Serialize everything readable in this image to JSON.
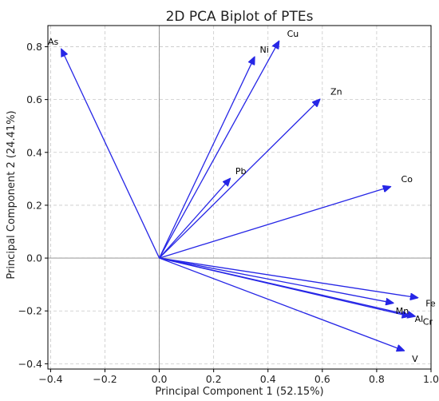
{
  "chart_data": {
    "type": "biplot",
    "title": "2D PCA Biplot of PTEs",
    "xlabel": "Principal Component 1 (52.15%)",
    "ylabel": "Principal Component 2 (24.41%)",
    "xlim": [
      -0.41,
      1.0
    ],
    "ylim": [
      -0.42,
      0.88
    ],
    "xticks": [
      -0.4,
      -0.2,
      0.0,
      0.2,
      0.4,
      0.6,
      0.8,
      1.0
    ],
    "xtick_labels": [
      "−0.4",
      "−0.2",
      "0.0",
      "0.2",
      "0.4",
      "0.6",
      "0.8",
      "1.0"
    ],
    "yticks": [
      -0.4,
      -0.2,
      0.0,
      0.2,
      0.4,
      0.6,
      0.8
    ],
    "ytick_labels": [
      "−0.4",
      "−0.2",
      "0.0",
      "0.2",
      "0.4",
      "0.6",
      "0.8"
    ],
    "grid": true,
    "arrow_color": "#2626e6",
    "vectors": [
      {
        "label": "As",
        "x": -0.36,
        "y": 0.79,
        "label_x": -0.41,
        "label_y": 0.82
      },
      {
        "label": "Cu",
        "x": 0.44,
        "y": 0.82,
        "label_x": 0.47,
        "label_y": 0.85
      },
      {
        "label": "Ni",
        "x": 0.35,
        "y": 0.76,
        "label_x": 0.37,
        "label_y": 0.79
      },
      {
        "label": "Zn",
        "x": 0.59,
        "y": 0.6,
        "label_x": 0.63,
        "label_y": 0.63
      },
      {
        "label": "Pb",
        "x": 0.26,
        "y": 0.3,
        "label_x": 0.28,
        "label_y": 0.33
      },
      {
        "label": "Co",
        "x": 0.85,
        "y": 0.27,
        "label_x": 0.89,
        "label_y": 0.3
      },
      {
        "label": "Fe",
        "x": 0.95,
        "y": -0.15,
        "label_x": 0.98,
        "label_y": -0.17
      },
      {
        "label": "Mn",
        "x": 0.86,
        "y": -0.17,
        "label_x": 0.87,
        "label_y": -0.2
      },
      {
        "label": "Al",
        "x": 0.92,
        "y": -0.22,
        "label_x": 0.94,
        "label_y": -0.23
      },
      {
        "label": "Cr",
        "x": 0.94,
        "y": -0.22,
        "label_x": 0.97,
        "label_y": -0.24
      },
      {
        "label": "V",
        "x": 0.9,
        "y": -0.35,
        "label_x": 0.93,
        "label_y": -0.38
      }
    ]
  }
}
